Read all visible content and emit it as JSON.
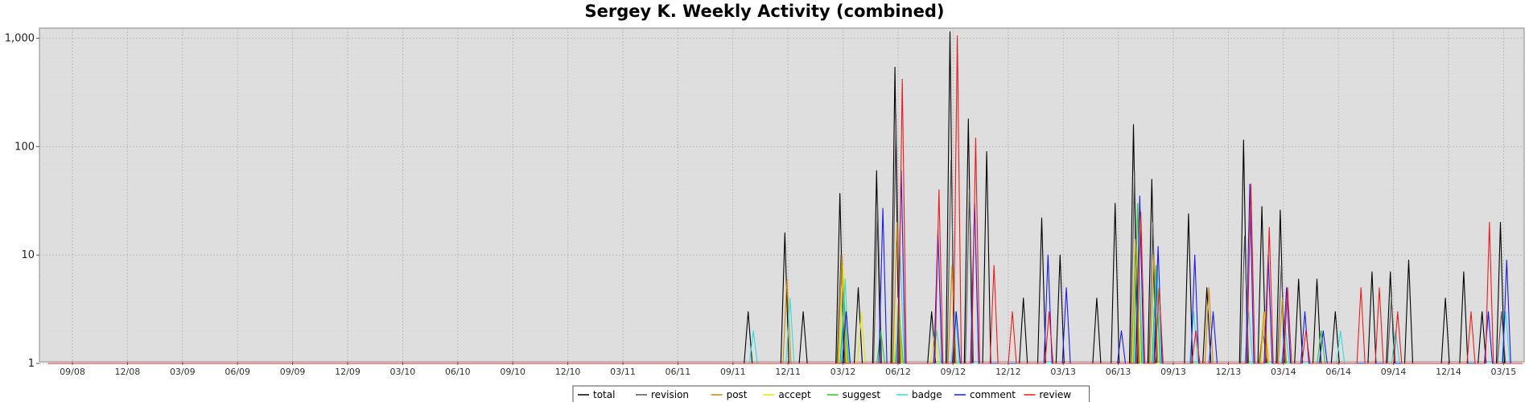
{
  "chart_data": {
    "type": "line",
    "title": "Sergey K. Weekly Activity (combined)",
    "xlabel": "",
    "ylabel": "",
    "y_scale": "log",
    "ylim": [
      1,
      1100
    ],
    "y_ticks": [
      "1",
      "10",
      "100",
      "1,000"
    ],
    "x_ticks": [
      "09/08",
      "12/08",
      "03/09",
      "06/09",
      "09/09",
      "12/09",
      "03/10",
      "06/10",
      "09/10",
      "12/10",
      "03/11",
      "06/11",
      "09/11",
      "12/11",
      "03/12",
      "06/12",
      "09/12",
      "12/12",
      "03/13",
      "06/13",
      "09/13",
      "12/13",
      "03/14",
      "06/14",
      "09/14",
      "12/14",
      "03/15"
    ],
    "grid": true,
    "legend_position": "bottom",
    "series": [
      {
        "name": "total",
        "color": "#000000",
        "points": [
          [
            "09/11",
            1
          ],
          [
            "10/11",
            3
          ],
          [
            "11/11",
            1
          ],
          [
            "12/11",
            16
          ],
          [
            "01/12",
            3
          ],
          [
            "02/12",
            1
          ],
          [
            "03/12",
            37
          ],
          [
            "04/12",
            5
          ],
          [
            "05/12",
            60
          ],
          [
            "06/12",
            540
          ],
          [
            "07/12",
            1
          ],
          [
            "08/12",
            3
          ],
          [
            "09/12",
            1150
          ],
          [
            "10/12",
            180
          ],
          [
            "11/12",
            90
          ],
          [
            "12/12",
            1
          ],
          [
            "01/13",
            4
          ],
          [
            "02/13",
            22
          ],
          [
            "03/13",
            10
          ],
          [
            "04/13",
            1
          ],
          [
            "05/13",
            4
          ],
          [
            "06/13",
            30
          ],
          [
            "07/13",
            160
          ],
          [
            "08/13",
            50
          ],
          [
            "09/13",
            1
          ],
          [
            "10/13",
            24
          ],
          [
            "11/13",
            5
          ],
          [
            "12/13",
            1
          ],
          [
            "01/14",
            115
          ],
          [
            "02/14",
            28
          ],
          [
            "03/14",
            26
          ],
          [
            "04/14",
            6
          ],
          [
            "05/14",
            6
          ],
          [
            "06/14",
            3
          ],
          [
            "07/14",
            1
          ],
          [
            "08/14",
            7
          ],
          [
            "09/14",
            7
          ],
          [
            "10/14",
            9
          ],
          [
            "11/14",
            1
          ],
          [
            "12/14",
            4
          ],
          [
            "01/15",
            7
          ],
          [
            "02/15",
            3
          ],
          [
            "03/15",
            20
          ]
        ]
      },
      {
        "name": "revision",
        "color": "#555555",
        "points": [
          [
            "03/12",
            10
          ],
          [
            "05/12",
            30
          ],
          [
            "06/12",
            200
          ],
          [
            "09/12",
            75
          ],
          [
            "10/12",
            40
          ],
          [
            "07/13",
            60
          ],
          [
            "08/13",
            20
          ],
          [
            "01/14",
            15
          ],
          [
            "02/14",
            2
          ],
          [
            "03/14",
            8
          ],
          [
            "09/14",
            4
          ],
          [
            "03/15",
            3
          ]
        ]
      },
      {
        "name": "post",
        "color": "#cc8800",
        "points": [
          [
            "12/11",
            6
          ],
          [
            "03/12",
            10
          ],
          [
            "06/12",
            20
          ],
          [
            "09/12",
            8
          ],
          [
            "07/13",
            14
          ],
          [
            "08/13",
            10
          ],
          [
            "11/13",
            5
          ],
          [
            "02/14",
            3
          ],
          [
            "03/14",
            4
          ]
        ]
      },
      {
        "name": "accept",
        "color": "#e6e600",
        "points": [
          [
            "03/12",
            8
          ],
          [
            "04/12",
            3
          ],
          [
            "06/12",
            4
          ],
          [
            "08/12",
            2
          ],
          [
            "07/13",
            12
          ],
          [
            "02/14",
            3
          ]
        ]
      },
      {
        "name": "suggest",
        "color": "#22cc22",
        "points": [
          [
            "03/12",
            4
          ],
          [
            "05/12",
            2
          ],
          [
            "06/12",
            3
          ],
          [
            "07/13",
            30
          ],
          [
            "08/13",
            8
          ],
          [
            "05/14",
            2
          ]
        ]
      },
      {
        "name": "badge",
        "color": "#33dddd",
        "points": [
          [
            "10/11",
            2
          ],
          [
            "12/11",
            4
          ],
          [
            "03/12",
            6
          ],
          [
            "06/12",
            10
          ],
          [
            "08/12",
            2
          ],
          [
            "09/12",
            3
          ],
          [
            "07/13",
            10
          ],
          [
            "08/13",
            8
          ],
          [
            "10/13",
            3
          ],
          [
            "01/14",
            3
          ],
          [
            "03/14",
            2
          ],
          [
            "06/14",
            2
          ],
          [
            "09/14",
            2
          ],
          [
            "03/15",
            3
          ]
        ]
      },
      {
        "name": "comment",
        "color": "#1a1aee",
        "points": [
          [
            "03/12",
            3
          ],
          [
            "05/12",
            27
          ],
          [
            "06/12",
            60
          ],
          [
            "08/12",
            17
          ],
          [
            "09/12",
            3
          ],
          [
            "10/12",
            30
          ],
          [
            "02/13",
            10
          ],
          [
            "03/13",
            5
          ],
          [
            "06/13",
            2
          ],
          [
            "07/13",
            35
          ],
          [
            "08/13",
            12
          ],
          [
            "10/13",
            10
          ],
          [
            "11/13",
            3
          ],
          [
            "01/14",
            45
          ],
          [
            "02/14",
            10
          ],
          [
            "03/14",
            5
          ],
          [
            "04/14",
            3
          ],
          [
            "05/14",
            2
          ],
          [
            "02/15",
            3
          ],
          [
            "03/15",
            9
          ]
        ]
      },
      {
        "name": "review",
        "color": "#ee1a1a",
        "points": [
          [
            "06/12",
            420
          ],
          [
            "08/12",
            40
          ],
          [
            "09/12",
            1050
          ],
          [
            "10/12",
            120
          ],
          [
            "11/12",
            8
          ],
          [
            "12/12",
            3
          ],
          [
            "02/13",
            3
          ],
          [
            "07/13",
            25
          ],
          [
            "08/13",
            5
          ],
          [
            "10/13",
            2
          ],
          [
            "01/14",
            45
          ],
          [
            "02/14",
            18
          ],
          [
            "03/14",
            5
          ],
          [
            "04/14",
            2
          ],
          [
            "07/14",
            5
          ],
          [
            "08/14",
            5
          ],
          [
            "09/14",
            3
          ],
          [
            "01/15",
            3
          ],
          [
            "02/15",
            20
          ]
        ]
      }
    ]
  }
}
